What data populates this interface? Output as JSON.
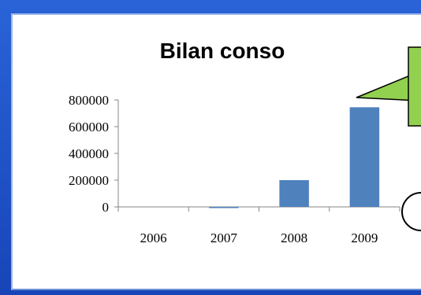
{
  "chart_data": {
    "type": "bar",
    "title": "Bilan conso",
    "categories": [
      "2006",
      "2007",
      "2008",
      "2009"
    ],
    "values": [
      0,
      -8000,
      200000,
      745000
    ],
    "ylim": [
      0,
      800000
    ],
    "yticks": [
      "800000",
      "600000",
      "400000",
      "200000",
      "0"
    ],
    "grid": false,
    "legend": "none",
    "colors": {
      "bar": "#4f81bd",
      "callout": "#92d050"
    }
  }
}
